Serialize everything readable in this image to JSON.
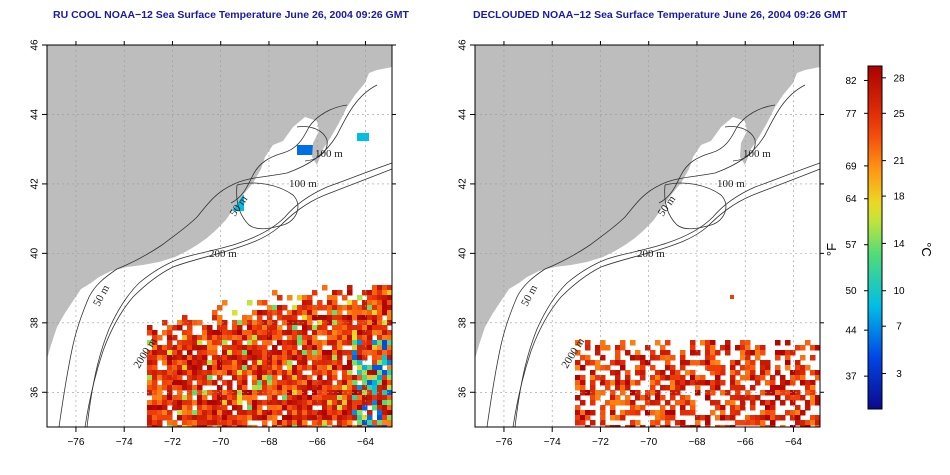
{
  "panels": [
    {
      "id": "ru_cool",
      "title": "RU COOL NOAA−12 Sea Surface Temperature June 26, 2004 09:26 GMT",
      "contour_labels": [
        "100 m",
        "100 m",
        "50 m",
        "200 m",
        "50 m",
        "2000 m"
      ]
    },
    {
      "id": "declouded",
      "title": "DECLOUDED NOAA−12 Sea Surface Temperature June 26, 2004 09:26 GMT",
      "contour_labels": [
        "100 m",
        "100 m",
        "50 m",
        "200 m",
        "50 m",
        "2000 m"
      ]
    }
  ],
  "axes": {
    "x_ticks": [
      "−76",
      "−74",
      "−72",
      "−70",
      "−68",
      "−66",
      "−64"
    ],
    "y_ticks": [
      "46",
      "44",
      "42",
      "40",
      "38",
      "36"
    ],
    "lon_range": [
      -77.2,
      -62.9
    ],
    "lat_range": [
      35.0,
      46.0
    ]
  },
  "colorbar": {
    "unit_f": "°F",
    "unit_c": "°C",
    "f_ticks": [
      "82",
      "77",
      "69",
      "64",
      "57",
      "50",
      "44",
      "37"
    ],
    "c_ticks": [
      "28",
      "25",
      "21",
      "18",
      "14",
      "10",
      "7",
      "3"
    ],
    "range_c": [
      0,
      29
    ]
  },
  "colors": {
    "land": "#bdbdbd",
    "ocean": "#ffffff",
    "title": "#1a1aa6",
    "contour": "#333333",
    "grid": "#999999"
  }
}
